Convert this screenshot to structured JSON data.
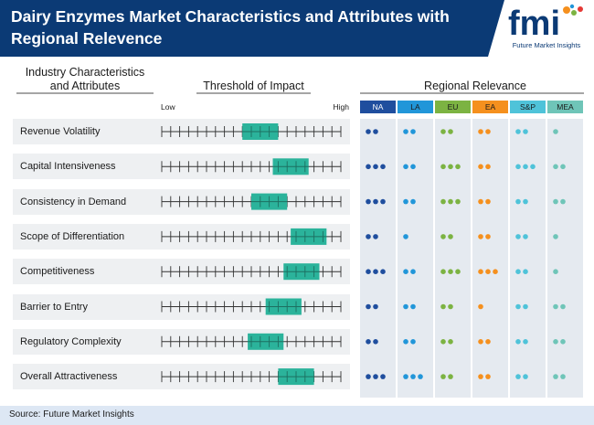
{
  "header": {
    "title": "Dairy Enzymes Market Characteristics and Attributes with Regional Relevence",
    "logo_text": "fmi",
    "logo_tagline": "Future Market Insights"
  },
  "columns": {
    "characteristics": "Industry Characteristics and Attributes",
    "threshold": "Threshold of Impact",
    "regional": "Regional Relevance",
    "low": "Low",
    "high": "High"
  },
  "colors": {
    "header_bg": "#0b3a75",
    "impact_box": "#2bb39b",
    "NA": "#1f4e9e",
    "LA": "#2196d9",
    "EU": "#7cb342",
    "EA": "#f5901e",
    "S&P": "#4fc3d9",
    "MEA": "#6fc5b8"
  },
  "chart_data": {
    "type": "table",
    "title": "Dairy Enzymes Market Characteristics and Attributes with Regional Relevence",
    "scale": {
      "min": 0,
      "max": 10,
      "low_label": "Low",
      "high_label": "High"
    },
    "regions": [
      "NA",
      "LA",
      "EU",
      "EA",
      "S&P",
      "MEA"
    ],
    "rows": [
      {
        "label": "Revenue Volatility",
        "impact": [
          4.5,
          6.5
        ],
        "relevance": [
          2,
          2,
          2,
          2,
          2,
          1
        ]
      },
      {
        "label": "Capital Intensiveness",
        "impact": [
          6.2,
          8.2
        ],
        "relevance": [
          3,
          2,
          3,
          2,
          3,
          2
        ]
      },
      {
        "label": "Consistency in Demand",
        "impact": [
          5.0,
          7.0
        ],
        "relevance": [
          3,
          2,
          3,
          2,
          2,
          2
        ]
      },
      {
        "label": "Scope of Differentiation",
        "impact": [
          7.2,
          9.2
        ],
        "relevance": [
          2,
          1,
          2,
          2,
          2,
          1
        ]
      },
      {
        "label": "Competitiveness",
        "impact": [
          6.8,
          8.8
        ],
        "relevance": [
          3,
          2,
          3,
          3,
          2,
          1
        ]
      },
      {
        "label": "Barrier to Entry",
        "impact": [
          5.8,
          7.8
        ],
        "relevance": [
          2,
          2,
          2,
          1,
          2,
          2
        ]
      },
      {
        "label": "Regulatory Complexity",
        "impact": [
          4.8,
          6.8
        ],
        "relevance": [
          2,
          2,
          2,
          2,
          2,
          2
        ]
      },
      {
        "label": "Overall Attractiveness",
        "impact": [
          6.5,
          8.5
        ],
        "relevance": [
          3,
          3,
          2,
          2,
          2,
          2
        ]
      }
    ]
  },
  "footer": {
    "source": "Source: Future Market Insights"
  }
}
